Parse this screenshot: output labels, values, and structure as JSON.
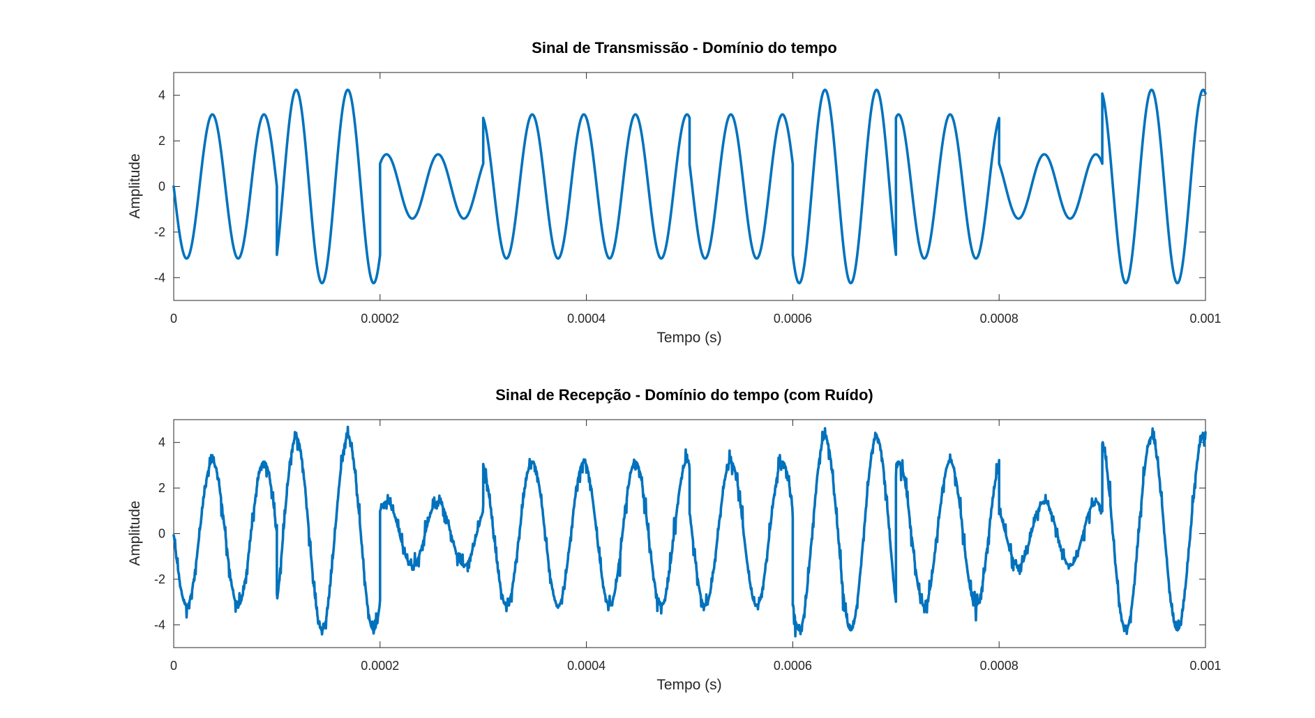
{
  "colors": {
    "series": "#0072BD",
    "axes": "#262626",
    "background": "#ffffff"
  },
  "chart_data": [
    {
      "type": "line",
      "title": "Sinal de Transmissão - Domínio do tempo",
      "xlabel": "Tempo (s)",
      "ylabel": "Amplitude",
      "xlim": [
        0,
        0.001
      ],
      "ylim": [
        -5,
        5
      ],
      "x_ticks": [
        0,
        0.0002,
        0.0004,
        0.0006,
        0.0008,
        0.001
      ],
      "x_tick_labels": [
        "0",
        "0.0002",
        "0.0004",
        "0.0006",
        "0.0008",
        "0.001"
      ],
      "y_ticks": [
        -4,
        -2,
        0,
        2,
        4
      ],
      "y_tick_labels": [
        "-4",
        "-2",
        "0",
        "2",
        "4"
      ],
      "grid": false,
      "legend": "none",
      "noisy": false,
      "series": [
        {
          "segment_duration": 0.0001,
          "frequency_hz": 20000,
          "symbols": [
            {
              "amplitude": 3.16,
              "phase_deg": 90
            },
            {
              "amplitude": 4.24,
              "phase_deg": 225
            },
            {
              "amplitude": 1.41,
              "phase_deg": -45
            },
            {
              "amplitude": 3.16,
              "phase_deg": 18
            },
            {
              "amplitude": 3.16,
              "phase_deg": 18
            },
            {
              "amplitude": 3.16,
              "phase_deg": 72
            },
            {
              "amplitude": 4.24,
              "phase_deg": 135
            },
            {
              "amplitude": 3.16,
              "phase_deg": -18
            },
            {
              "amplitude": 1.41,
              "phase_deg": 45
            },
            {
              "amplitude": 4.24,
              "phase_deg": 16
            }
          ]
        }
      ]
    },
    {
      "type": "line",
      "title": "Sinal de Recepção - Domínio do tempo (com Ruído)",
      "xlabel": "Tempo (s)",
      "ylabel": "Amplitude",
      "xlim": [
        0,
        0.001
      ],
      "ylim": [
        -5,
        5
      ],
      "x_ticks": [
        0,
        0.0002,
        0.0004,
        0.0006,
        0.0008,
        0.001
      ],
      "x_tick_labels": [
        "0",
        "0.0002",
        "0.0004",
        "0.0006",
        "0.0008",
        "0.001"
      ],
      "y_ticks": [
        -4,
        -2,
        0,
        2,
        4
      ],
      "y_tick_labels": [
        "-4",
        "-2",
        "0",
        "2",
        "4"
      ],
      "grid": false,
      "legend": "none",
      "noisy": true,
      "noise_std": 0.25,
      "series": [
        {
          "segment_duration": 0.0001,
          "frequency_hz": 20000,
          "symbols": [
            {
              "amplitude": 3.16,
              "phase_deg": 90
            },
            {
              "amplitude": 4.24,
              "phase_deg": 225
            },
            {
              "amplitude": 1.41,
              "phase_deg": -45
            },
            {
              "amplitude": 3.16,
              "phase_deg": 18
            },
            {
              "amplitude": 3.16,
              "phase_deg": 18
            },
            {
              "amplitude": 3.16,
              "phase_deg": 72
            },
            {
              "amplitude": 4.24,
              "phase_deg": 135
            },
            {
              "amplitude": 3.16,
              "phase_deg": -18
            },
            {
              "amplitude": 1.41,
              "phase_deg": 45
            },
            {
              "amplitude": 4.24,
              "phase_deg": 16
            }
          ]
        }
      ]
    }
  ]
}
